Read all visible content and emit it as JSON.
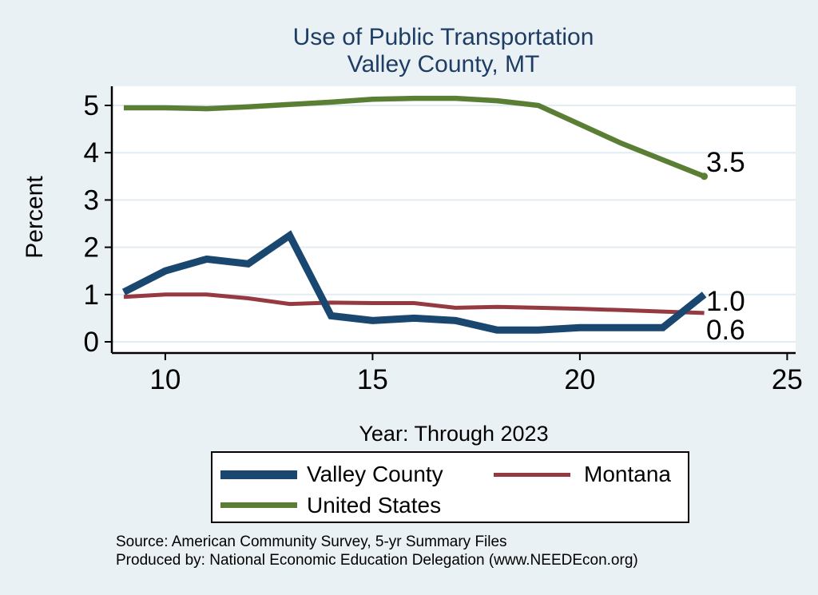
{
  "title": {
    "line1": "Use of Public Transportation",
    "line2": "Valley County, MT"
  },
  "chart_data": {
    "type": "line",
    "x": [
      9,
      10,
      11,
      12,
      13,
      14,
      15,
      16,
      17,
      18,
      19,
      20,
      21,
      22,
      23
    ],
    "series": [
      {
        "name": "Valley County",
        "color": "#1a476f",
        "width": 9,
        "end_label": "1.0",
        "values": [
          1.05,
          1.5,
          1.75,
          1.65,
          2.25,
          0.55,
          0.45,
          0.5,
          0.45,
          0.25,
          0.25,
          0.3,
          0.3,
          0.3,
          1.0
        ]
      },
      {
        "name": "Montana",
        "color": "#963a42",
        "width": 5,
        "end_label": "0.6",
        "values": [
          0.95,
          1.0,
          1.0,
          0.92,
          0.8,
          0.83,
          0.82,
          0.82,
          0.72,
          0.74,
          0.72,
          0.7,
          0.67,
          0.64,
          0.61
        ]
      },
      {
        "name": "United States",
        "color": "#5b7e35",
        "width": 6.5,
        "end_label": "3.5",
        "end_marker": true,
        "values": [
          4.95,
          4.95,
          4.93,
          4.97,
          5.02,
          5.07,
          5.13,
          5.15,
          5.15,
          5.1,
          5.0,
          4.6,
          4.2,
          3.85,
          3.5
        ]
      }
    ],
    "title": "Use of Public Transportation Valley County, MT",
    "xlabel": "Year: Through 2023",
    "ylabel": "Percent",
    "x_ticks": [
      10,
      15,
      20,
      25
    ],
    "y_ticks": [
      0,
      1,
      2,
      3,
      4,
      5
    ],
    "xlim": [
      8.7,
      25.3
    ],
    "ylim": [
      0,
      5.4
    ],
    "grid": true,
    "legend_position": "bottom"
  },
  "footer": {
    "source": "Source: American Community Survey, 5-yr Summary Files",
    "produced_by": "Produced by: National Economic Education Delegation (www.NEEDEcon.org)"
  },
  "colors": {
    "background": "#eaf1f4",
    "plot_background": "#ffffff",
    "gridline": "#e2ecf3",
    "axis": "#000000",
    "title_text": "#1f3d64"
  }
}
